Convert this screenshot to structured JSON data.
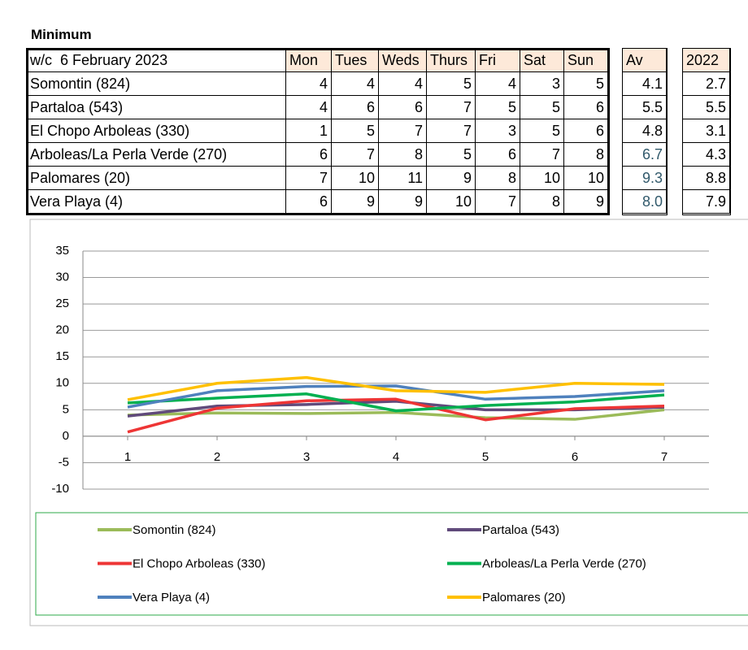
{
  "title": "Minimum",
  "table": {
    "header": [
      "w/c  6 February 2023",
      "Mon",
      "Tues",
      "Weds",
      "Thurs",
      "Fri",
      "Sat",
      "Sun",
      "Av",
      "2022"
    ],
    "rows": [
      [
        "Somontin (824)",
        "4",
        "4",
        "4",
        "5",
        "4",
        "3",
        "5",
        "4.1",
        "2.7"
      ],
      [
        "Partaloa (543)",
        "4",
        "6",
        "6",
        "7",
        "5",
        "5",
        "6",
        "5.5",
        "5.5"
      ],
      [
        "El Chopo Arboleas (330)",
        "1",
        "5",
        "7",
        "7",
        "3",
        "5",
        "6",
        "4.8",
        "3.1"
      ],
      [
        "Arboleas/La Perla Verde (270)",
        "6",
        "7",
        "8",
        "5",
        "6",
        "7",
        "8",
        "6.7",
        "4.3"
      ],
      [
        "Palomares (20)",
        "7",
        "10",
        "11",
        "9",
        "8",
        "10",
        "10",
        "9.3",
        "8.8"
      ],
      [
        "Vera Playa (4)",
        "6",
        "9",
        "9",
        "10",
        "7",
        "8",
        "9",
        "8.0",
        "7.9"
      ]
    ]
  },
  "chart_data": {
    "type": "line",
    "x": [
      1,
      2,
      3,
      4,
      5,
      6,
      7
    ],
    "xlim": [
      0.5,
      7.5
    ],
    "xticks": [
      1,
      2,
      3,
      4,
      5,
      6,
      7
    ],
    "ylim": [
      -10,
      35
    ],
    "yticks": [
      -10,
      -5,
      0,
      5,
      10,
      15,
      20,
      25,
      30,
      35
    ],
    "grid": true,
    "series": [
      {
        "name": "Somontin (824)",
        "color": "#9bbb59",
        "values": [
          4,
          4.4,
          4.3,
          4.5,
          3.5,
          3.2,
          5
        ]
      },
      {
        "name": "Partaloa (543)",
        "color": "#604a7b",
        "values": [
          3.8,
          5.7,
          6,
          6.6,
          5,
          5,
          5.5
        ]
      },
      {
        "name": "El Chopo Arboleas (330)",
        "color": "#ee3535",
        "values": [
          0.8,
          5.3,
          6.7,
          7,
          3.1,
          5.2,
          5.7
        ]
      },
      {
        "name": "Arboleas/La Perla Verde (270)",
        "color": "#00b050",
        "values": [
          6.3,
          7.2,
          8,
          4.8,
          5.8,
          6.5,
          7.8
        ]
      },
      {
        "name": "Vera Playa (4)",
        "color": "#4f81bd",
        "values": [
          5.5,
          8.6,
          9.4,
          9.5,
          7,
          7.5,
          8.6
        ]
      },
      {
        "name": "Palomares (20)",
        "color": "#ffc000",
        "values": [
          6.9,
          10,
          11.1,
          8.6,
          8.3,
          10,
          9.8
        ]
      }
    ]
  }
}
